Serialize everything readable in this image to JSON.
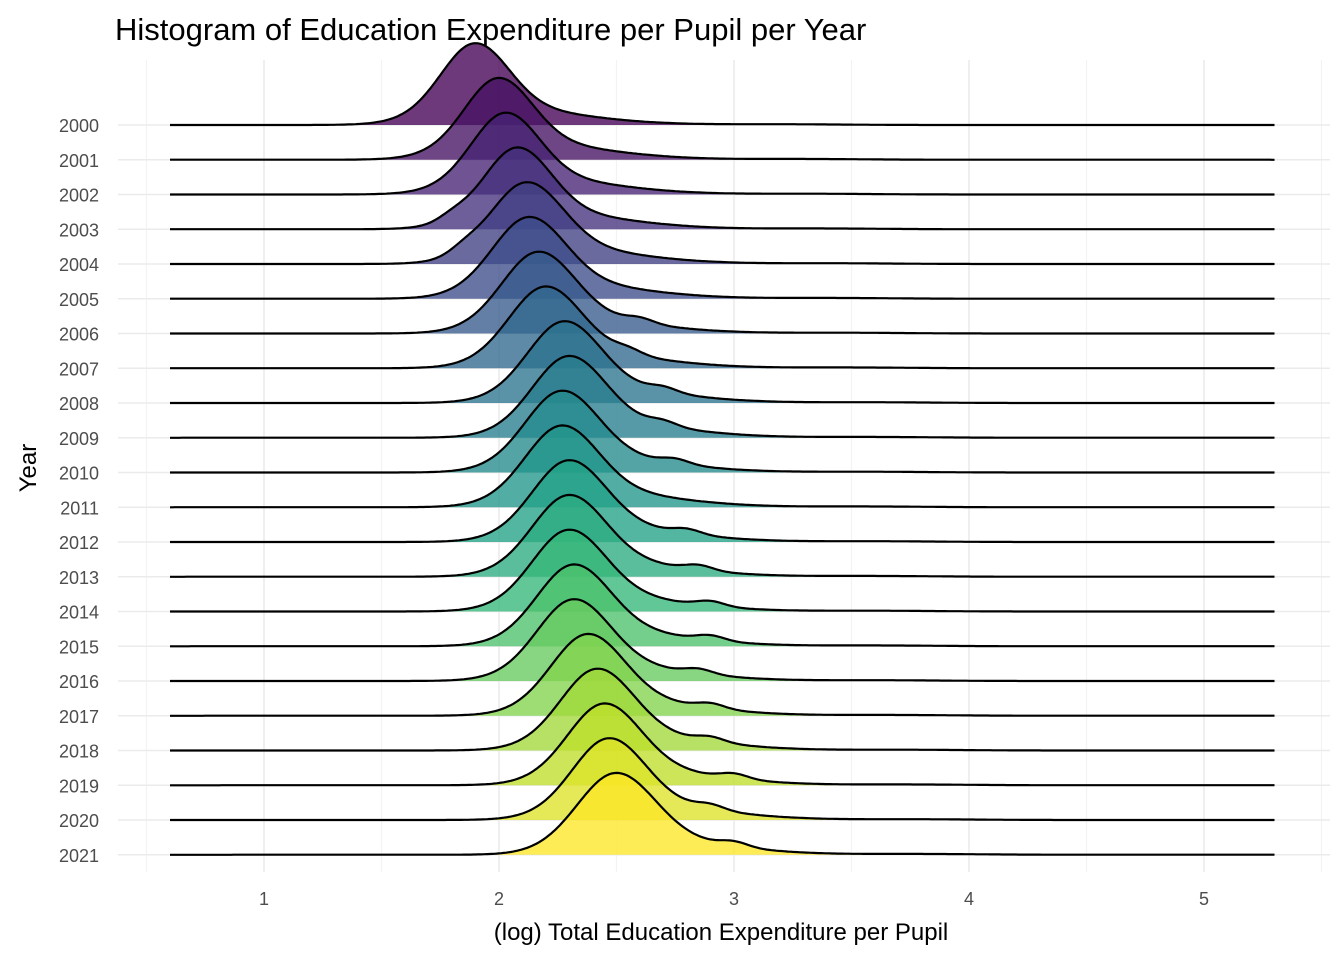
{
  "chart_data": {
    "type": "ridgeline",
    "title": "Histogram of Education Expenditure per Pupil per Year",
    "xlabel": "(log) Total Education Expenditure per Pupil",
    "ylabel": "Year",
    "xlim": [
      0.5,
      5.5
    ],
    "x_ticks": [
      "1",
      "2",
      "3",
      "4",
      "5"
    ],
    "grid": true,
    "legend": "none",
    "palette": "viridis",
    "x_range_drawn": [
      0.6,
      5.3
    ],
    "series": [
      {
        "name": "2000",
        "peak": 1.9,
        "w": 0.14,
        "tail": 0.9,
        "hump": null
      },
      {
        "name": "2001",
        "peak": 2.0,
        "w": 0.14,
        "tail": 0.85,
        "hump": null
      },
      {
        "name": "2002",
        "peak": 2.03,
        "w": 0.14,
        "tail": 0.85,
        "hump": null
      },
      {
        "name": "2003",
        "peak": 2.08,
        "w": 0.14,
        "tail": 0.85,
        "hump": 1.8
      },
      {
        "name": "2004",
        "peak": 2.12,
        "w": 0.15,
        "tail": 0.8,
        "hump": 1.85
      },
      {
        "name": "2005",
        "peak": 2.13,
        "w": 0.15,
        "tail": 0.8,
        "hump": null
      },
      {
        "name": "2006",
        "peak": 2.17,
        "w": 0.15,
        "tail": 0.8,
        "hump": 2.6
      },
      {
        "name": "2007",
        "peak": 2.2,
        "w": 0.15,
        "tail": 0.8,
        "hump": 2.55
      },
      {
        "name": "2008",
        "peak": 2.28,
        "w": 0.15,
        "tail": 0.8,
        "hump": 2.7
      },
      {
        "name": "2009",
        "peak": 2.3,
        "w": 0.15,
        "tail": 0.8,
        "hump": 2.7
      },
      {
        "name": "2010",
        "peak": 2.27,
        "w": 0.15,
        "tail": 0.8,
        "hump": 2.75
      },
      {
        "name": "2011",
        "peak": 2.27,
        "w": 0.15,
        "tail": 0.8,
        "hump": null
      },
      {
        "name": "2012",
        "peak": 2.3,
        "w": 0.15,
        "tail": 0.8,
        "hump": 2.8
      },
      {
        "name": "2013",
        "peak": 2.3,
        "w": 0.15,
        "tail": 0.8,
        "hump": 2.85
      },
      {
        "name": "2014",
        "peak": 2.3,
        "w": 0.15,
        "tail": 0.8,
        "hump": 2.9
      },
      {
        "name": "2015",
        "peak": 2.32,
        "w": 0.15,
        "tail": 0.8,
        "hump": 2.9
      },
      {
        "name": "2016",
        "peak": 2.32,
        "w": 0.15,
        "tail": 0.8,
        "hump": 2.85
      },
      {
        "name": "2017",
        "peak": 2.38,
        "w": 0.15,
        "tail": 0.8,
        "hump": 2.9
      },
      {
        "name": "2018",
        "peak": 2.42,
        "w": 0.15,
        "tail": 0.8,
        "hump": 2.9
      },
      {
        "name": "2019",
        "peak": 2.45,
        "w": 0.15,
        "tail": 0.8,
        "hump": 3.0
      },
      {
        "name": "2020",
        "peak": 2.47,
        "w": 0.15,
        "tail": 0.8,
        "hump": 2.9
      },
      {
        "name": "2021",
        "peak": 2.5,
        "w": 0.16,
        "tail": 0.8,
        "hump": 3.0
      }
    ]
  }
}
